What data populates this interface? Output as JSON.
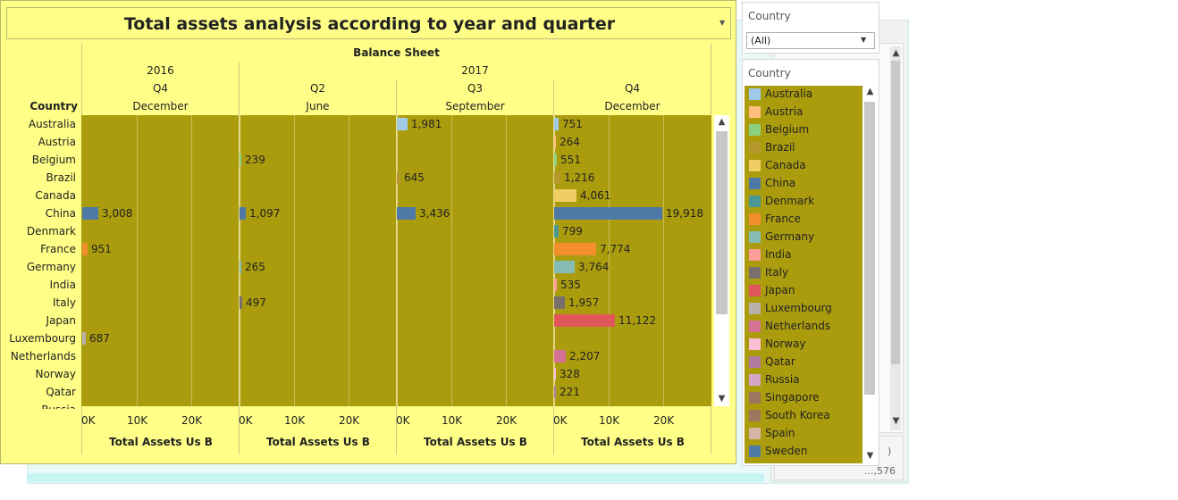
{
  "dashboard": {
    "title": "Total assets analysis according to year and quarter",
    "header_top": "Balance Sheet",
    "row_header": "Country",
    "years": [
      "2016",
      "2017"
    ],
    "columns": [
      {
        "quarter": "Q4",
        "month": "December"
      },
      {
        "quarter": "Q2",
        "month": "June"
      },
      {
        "quarter": "Q3",
        "month": "September"
      },
      {
        "quarter": "Q4",
        "month": "December"
      }
    ],
    "axis_ticks": [
      "0K",
      "10K",
      "20K"
    ],
    "axis_title": "Total Assets Us B"
  },
  "chart_data": {
    "type": "bar",
    "orientation": "horizontal",
    "x_range": [
      0,
      28000
    ],
    "categories": [
      "Australia",
      "Austria",
      "Belgium",
      "Brazil",
      "Canada",
      "China",
      "Denmark",
      "France",
      "Germany",
      "India",
      "Italy",
      "Japan",
      "Luxembourg",
      "Netherlands",
      "Norway",
      "Qatar"
    ],
    "series": [
      {
        "name": "2016 Q4 December",
        "values": [
          null,
          null,
          null,
          null,
          null,
          3008,
          null,
          951,
          null,
          null,
          null,
          null,
          687,
          null,
          null,
          null
        ],
        "labels": [
          "",
          "",
          "",
          "",
          "",
          "3,008",
          "",
          "951",
          "",
          "",
          "",
          "",
          "687",
          "",
          "",
          ""
        ]
      },
      {
        "name": "2017 Q2 June",
        "values": [
          null,
          null,
          239,
          null,
          null,
          1097,
          null,
          null,
          265,
          null,
          497,
          null,
          null,
          null,
          null,
          null
        ],
        "labels": [
          "",
          "",
          "239",
          "",
          "",
          "1,097",
          "",
          "",
          "265",
          "",
          "497",
          "",
          "",
          "",
          "",
          ""
        ]
      },
      {
        "name": "2017 Q3 September",
        "values": [
          1981,
          null,
          null,
          645,
          null,
          3436,
          null,
          null,
          null,
          null,
          null,
          null,
          null,
          null,
          null,
          null
        ],
        "labels": [
          "1,981",
          "",
          "",
          "645",
          "",
          "3,436",
          "",
          "",
          "",
          "",
          "",
          "",
          "",
          "",
          "",
          ""
        ]
      },
      {
        "name": "2017 Q4 December",
        "values": [
          751,
          264,
          551,
          1216,
          4061,
          19918,
          799,
          7774,
          3764,
          535,
          1957,
          11122,
          null,
          2207,
          328,
          221
        ],
        "labels": [
          "751",
          "264",
          "551",
          "1,216",
          "4,061",
          "19,918",
          "799",
          "7,774",
          "3,764",
          "535",
          "1,957",
          "11,122",
          "",
          "2,207",
          "328",
          "221"
        ]
      }
    ],
    "partial_next_row": "Russia"
  },
  "colors": {
    "Australia": "#a0cbe8",
    "Austria": "#ffbe7d",
    "Belgium": "#8cd17d",
    "Brazil": "#b6992d",
    "Canada": "#f1ce63",
    "China": "#4e79a7",
    "Denmark": "#499894",
    "France": "#f28e2b",
    "Germany": "#86bcb6",
    "India": "#ff9d9a",
    "Italy": "#79706e",
    "Japan": "#e15759",
    "Luxembourg": "#bab0ac",
    "Netherlands": "#d37295",
    "Norway": "#fabfd2",
    "Qatar": "#b07aa1",
    "Russia": "#d4a6c8",
    "Singapore": "#9d7660",
    "South Korea": "#9d7660",
    "Spain": "#d7b5a6",
    "Sweden": "#4e79a7",
    "plot_bg": "#ab9c0e",
    "dashboard_bg": "#ffff88"
  },
  "filter": {
    "title": "Country",
    "selected": "(All)"
  },
  "legend": {
    "title": "Country",
    "items": [
      "Australia",
      "Austria",
      "Belgium",
      "Brazil",
      "Canada",
      "China",
      "Denmark",
      "France",
      "Germany",
      "India",
      "Italy",
      "Japan",
      "Luxembourg",
      "Netherlands",
      "Norway",
      "Qatar",
      "Russia",
      "Singapore",
      "South Korea",
      "Spain",
      "Sweden"
    ]
  },
  "background_window": {
    "value_fragment": "...,576"
  }
}
